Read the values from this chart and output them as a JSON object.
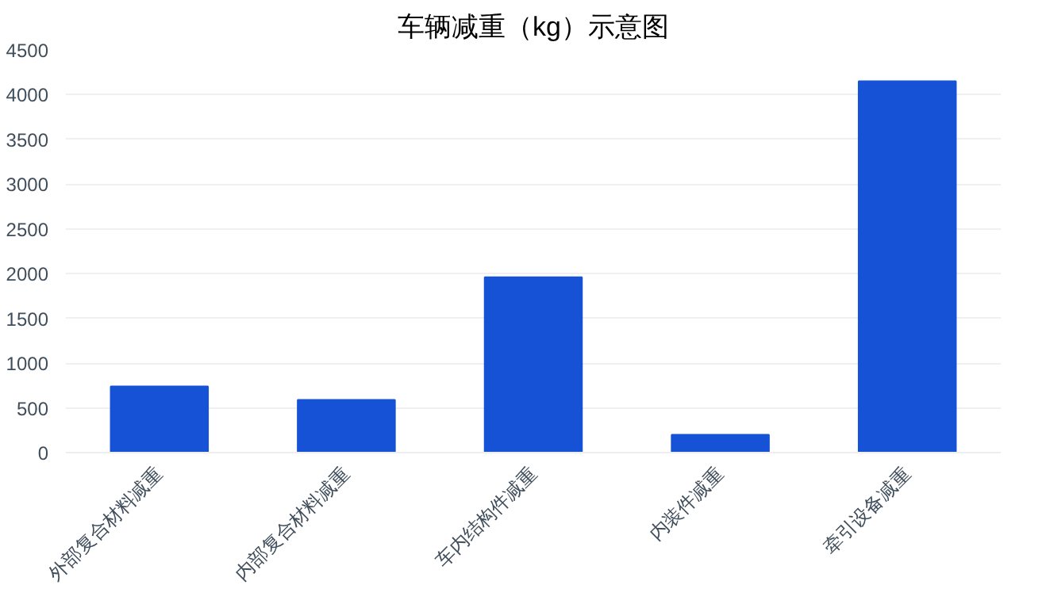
{
  "chart_data": {
    "type": "bar",
    "title": "车辆减重（kg）示意图",
    "categories": [
      "外部复合材料减重",
      "内部复合材料减重",
      "车内结构件减重",
      "内装件减重",
      "牵引设备减重"
    ],
    "values": [
      740,
      590,
      1960,
      200,
      4150
    ],
    "color": "#1552d6",
    "ylim": [
      0,
      4500
    ],
    "yticks": [
      0,
      500,
      1000,
      1500,
      2000,
      2500,
      3000,
      3500,
      4000,
      4500
    ],
    "grid": "y"
  }
}
